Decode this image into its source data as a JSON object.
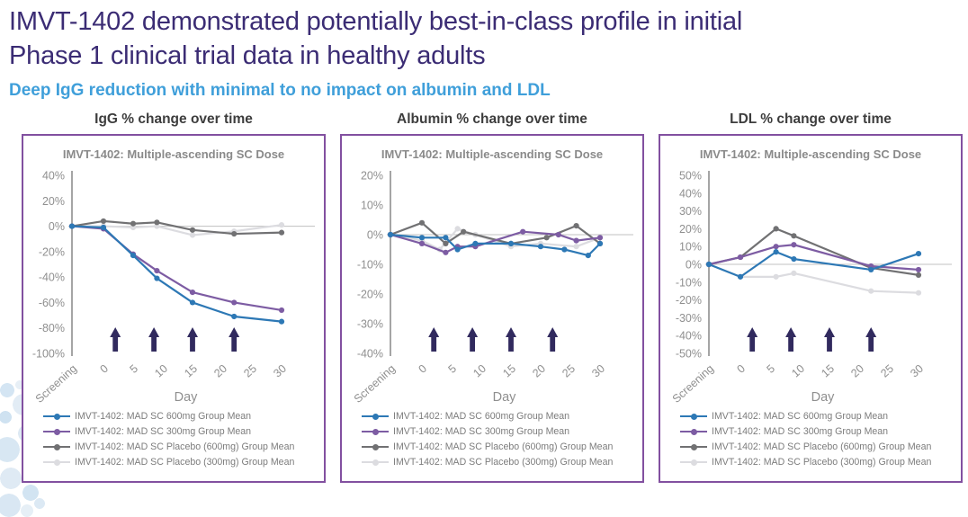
{
  "slide": {
    "title_line1": "IMVT-1402 demonstrated potentially best-in-class profile in initial",
    "title_line2": "Phase 1 clinical trial data in healthy adults",
    "subtitle": "Deep IgG reduction with minimal to no impact on albumin and LDL",
    "title_color": "#3b2c74",
    "subtitle_color": "#3f9fda"
  },
  "colors": {
    "series_600mg": "#2d78b5",
    "series_300mg": "#7d5ca3",
    "series_placebo600": "#717173",
    "series_placebo300": "#dcdce0",
    "dose_arrow": "#312a5e",
    "card_border": "#8250a0",
    "axis_line": "#a5a5a5",
    "zero_line": "#c0c0c0",
    "tick_text": "#8f8f8f"
  },
  "x_axis_note": "x value -5 encodes the Screening timepoint; other x values are study days",
  "chart_data": [
    {
      "type": "line",
      "title": "IgG % change over time",
      "inner_title": "IMVT-1402: Multiple-ascending SC Dose",
      "xlabel": "Day",
      "x_ticks": [
        "Screening",
        "0",
        "5",
        "10",
        "15",
        "20",
        "25",
        "30"
      ],
      "ylim": [
        -100,
        40
      ],
      "ystep": 20,
      "grid": false,
      "legend_position": "bottom",
      "dose_arrow_days": [
        2,
        8.5,
        15,
        22
      ],
      "series": [
        {
          "name": "IMVT-1402: MAD SC 600mg Group Mean",
          "color": "#2d78b5",
          "points": [
            [
              -5,
              0
            ],
            [
              0,
              -1
            ],
            [
              5,
              -23
            ],
            [
              9,
              -41
            ],
            [
              15,
              -60
            ],
            [
              22,
              -71
            ],
            [
              30,
              -75
            ]
          ]
        },
        {
          "name": "IMVT-1402: MAD SC 300mg Group Mean",
          "color": "#7d5ca3",
          "points": [
            [
              -5,
              0
            ],
            [
              0,
              -2
            ],
            [
              5,
              -22
            ],
            [
              9,
              -35
            ],
            [
              15,
              -52
            ],
            [
              22,
              -60
            ],
            [
              30,
              -66
            ]
          ]
        },
        {
          "name": "IMVT-1402: MAD SC Placebo (600mg) Group Mean",
          "color": "#717173",
          "points": [
            [
              -5,
              0
            ],
            [
              0,
              4
            ],
            [
              5,
              2
            ],
            [
              9,
              3
            ],
            [
              15,
              -3
            ],
            [
              22,
              -6
            ],
            [
              30,
              -5
            ]
          ]
        },
        {
          "name": "IMVT-1402: MAD SC Placebo (300mg) Group Mean",
          "color": "#dcdce0",
          "points": [
            [
              -5,
              0
            ],
            [
              0,
              0
            ],
            [
              5,
              -1
            ],
            [
              9,
              0
            ],
            [
              15,
              -7
            ],
            [
              22,
              -4
            ],
            [
              30,
              1
            ]
          ]
        }
      ]
    },
    {
      "type": "line",
      "title": "Albumin % change over time",
      "inner_title": "IMVT-1402: Multiple-ascending SC Dose",
      "xlabel": "Day",
      "x_ticks": [
        "Screening",
        "0",
        "5",
        "10",
        "15",
        "20",
        "25",
        "30"
      ],
      "ylim": [
        -40,
        20
      ],
      "ystep": 10,
      "grid": false,
      "legend_position": "bottom",
      "dose_arrow_days": [
        2,
        8.5,
        15,
        22
      ],
      "series": [
        {
          "name": "IMVT-1402: MAD SC 600mg Group Mean",
          "color": "#2d78b5",
          "points": [
            [
              -5,
              0
            ],
            [
              0,
              -1
            ],
            [
              4,
              -1
            ],
            [
              6,
              -5
            ],
            [
              9,
              -3
            ],
            [
              15,
              -3
            ],
            [
              20,
              -4
            ],
            [
              24,
              -5
            ],
            [
              28,
              -7
            ],
            [
              30,
              -3
            ]
          ]
        },
        {
          "name": "IMVT-1402: MAD SC 300mg Group Mean",
          "color": "#7d5ca3",
          "points": [
            [
              -5,
              0
            ],
            [
              0,
              -3
            ],
            [
              4,
              -6
            ],
            [
              6,
              -4
            ],
            [
              9,
              -4
            ],
            [
              17,
              1
            ],
            [
              23,
              0
            ],
            [
              26,
              -2
            ],
            [
              30,
              -1
            ]
          ]
        },
        {
          "name": "IMVT-1402: MAD SC Placebo (600mg) Group Mean",
          "color": "#717173",
          "points": [
            [
              -5,
              0
            ],
            [
              0,
              4
            ],
            [
              4,
              -3
            ],
            [
              7,
              1
            ],
            [
              15,
              -3
            ],
            [
              21,
              -1
            ],
            [
              26,
              3
            ],
            [
              30,
              -3
            ]
          ]
        },
        {
          "name": "IMVT-1402: MAD SC Placebo (300mg) Group Mean",
          "color": "#dcdce0",
          "points": [
            [
              -5,
              0
            ],
            [
              0,
              -2
            ],
            [
              3,
              -5
            ],
            [
              6,
              2
            ],
            [
              9,
              0
            ],
            [
              15,
              -4
            ],
            [
              20,
              -3
            ],
            [
              26,
              -4
            ],
            [
              30,
              -1
            ]
          ]
        }
      ]
    },
    {
      "type": "line",
      "title": "LDL % change over time",
      "inner_title": "IMVT-1402: Multiple-ascending SC Dose",
      "xlabel": "Day",
      "x_ticks": [
        "Screening",
        "0",
        "5",
        "10",
        "15",
        "20",
        "25",
        "30"
      ],
      "ylim": [
        -50,
        50
      ],
      "ystep": 10,
      "grid": false,
      "legend_position": "bottom",
      "dose_arrow_days": [
        2,
        8.5,
        15,
        22
      ],
      "series": [
        {
          "name": "IMVT-1402: MAD SC 600mg Group Mean",
          "color": "#2d78b5",
          "points": [
            [
              -5,
              0
            ],
            [
              0,
              -7
            ],
            [
              6,
              7
            ],
            [
              9,
              3
            ],
            [
              22,
              -3
            ],
            [
              30,
              6
            ]
          ]
        },
        {
          "name": "IMVT-1402: MAD SC 300mg Group Mean",
          "color": "#7d5ca3",
          "points": [
            [
              -5,
              0
            ],
            [
              0,
              4
            ],
            [
              6,
              10
            ],
            [
              9,
              11
            ],
            [
              22,
              -1
            ],
            [
              30,
              -3
            ]
          ]
        },
        {
          "name": "IMVT-1402: MAD SC Placebo (600mg) Group Mean",
          "color": "#717173",
          "points": [
            [
              -5,
              0
            ],
            [
              0,
              4
            ],
            [
              6,
              20
            ],
            [
              9,
              16
            ],
            [
              22,
              -2
            ],
            [
              30,
              -6
            ]
          ]
        },
        {
          "name": "IMVT-1402: MAD SC Placebo (300mg) Group Mean",
          "color": "#dcdce0",
          "points": [
            [
              -5,
              0
            ],
            [
              0,
              -7
            ],
            [
              6,
              -7
            ],
            [
              9,
              -5
            ],
            [
              22,
              -15
            ],
            [
              30,
              -16
            ]
          ]
        }
      ]
    }
  ]
}
